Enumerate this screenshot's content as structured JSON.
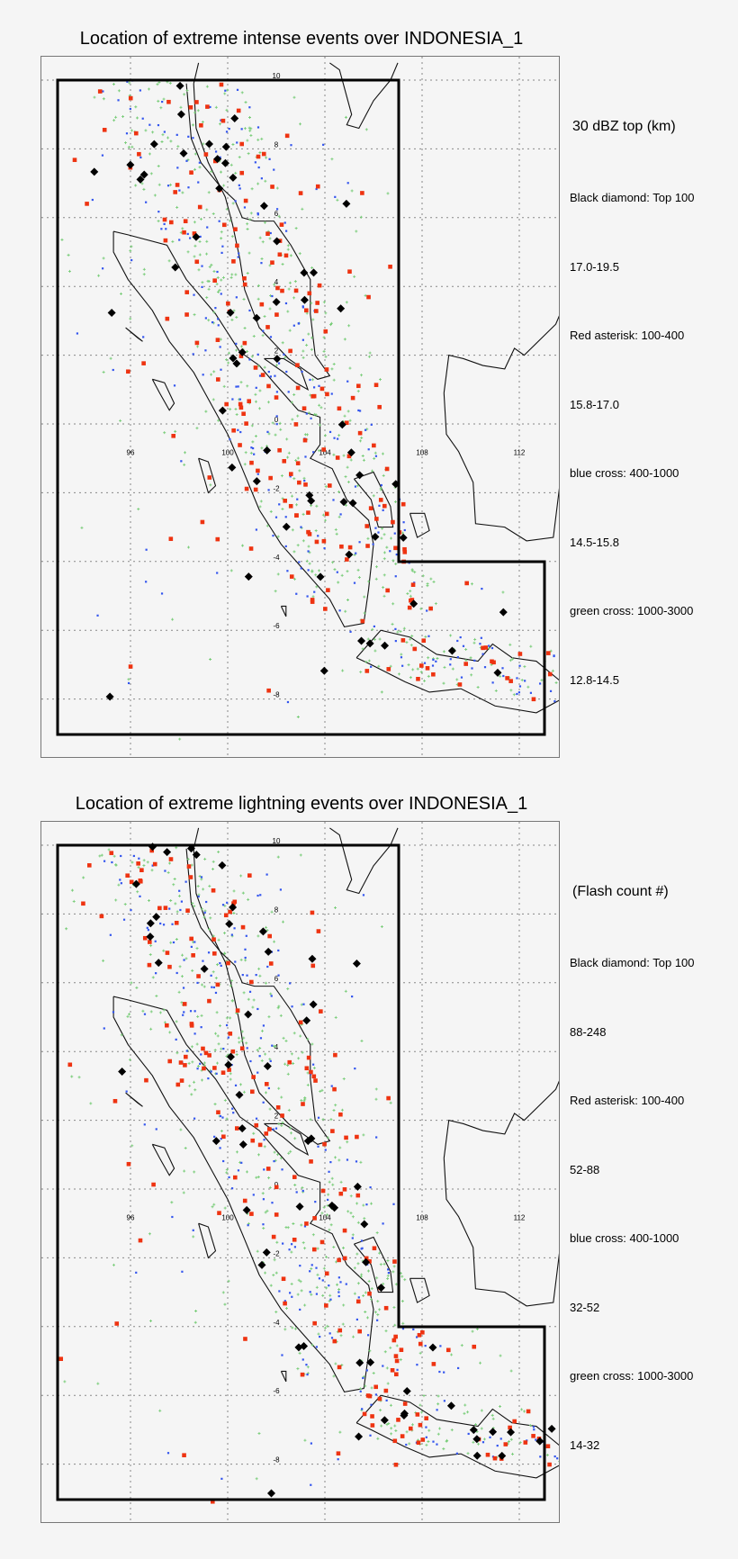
{
  "chart_data": [
    {
      "type": "scatter",
      "title": "Location of extreme intense events over INDONESIA_1",
      "variable": "30 dBZ top (km)",
      "xlabel": "",
      "ylabel": "",
      "x_ticks": [
        "96",
        "100",
        "104",
        "108",
        "112"
      ],
      "y_ticks": [
        "10",
        "8",
        "6",
        "4",
        "2",
        "0",
        "-2",
        "-4",
        "-6",
        "-8"
      ],
      "xlim": [
        92.5,
        114
      ],
      "ylim": [
        -9.5,
        10
      ],
      "grid": true,
      "legend_position": "right",
      "legend": [
        {
          "marker": "black diamond",
          "label": "Black diamond: Top 100",
          "range": "17.0-19.5"
        },
        {
          "marker": "red asterisk",
          "label": "Red asterisk: 100-400",
          "range": "15.8-17.0"
        },
        {
          "marker": "blue cross",
          "label": "blue cross: 400-1000",
          "range": "14.5-15.8"
        },
        {
          "marker": "green cross",
          "label": "green cross: 1000-3000",
          "range": "12.8-14.5"
        }
      ]
    },
    {
      "type": "scatter",
      "title": "Location of extreme lightning  events over INDONESIA_1",
      "variable": "(Flash count #)",
      "xlabel": "",
      "ylabel": "",
      "x_ticks": [
        "96",
        "100",
        "104",
        "108",
        "112"
      ],
      "y_ticks": [
        "10",
        "8",
        "6",
        "4",
        "2",
        "0",
        "-2",
        "-4",
        "-6",
        "-8"
      ],
      "xlim": [
        92.5,
        114
      ],
      "ylim": [
        -9.5,
        10
      ],
      "grid": true,
      "legend_position": "right",
      "legend": [
        {
          "marker": "black diamond",
          "label": "Black diamond: Top 100",
          "range": "88-248"
        },
        {
          "marker": "red asterisk",
          "label": "Red asterisk: 100-400",
          "range": "52-88"
        },
        {
          "marker": "blue cross",
          "label": "blue cross: 400-1000",
          "range": "32-52"
        },
        {
          "marker": "green cross",
          "label": "green cross: 1000-3000",
          "range": "14-32"
        }
      ]
    }
  ],
  "panels": [
    {
      "title": "Location of extreme intense events over INDONESIA_1",
      "legend_header": "30 dBZ top (km)",
      "legend": [
        "Black diamond: Top 100",
        "17.0-19.5",
        "Red asterisk: 100-400",
        "15.8-17.0",
        "blue cross: 400-1000",
        "14.5-15.8",
        "green cross: 1000-3000",
        "12.8-14.5"
      ]
    },
    {
      "title": "Location of extreme lightning  events over INDONESIA_1",
      "legend_header": "(Flash count #)",
      "legend": [
        "Black diamond: Top 100",
        "88-248",
        "Red asterisk: 100-400",
        "52-88",
        "blue cross: 400-1000",
        "32-52",
        "green cross: 1000-3000",
        "14-32"
      ]
    }
  ],
  "colors": {
    "diamond": "#000000",
    "red": "#ee3311",
    "blue": "#3355ee",
    "green": "#77cc77",
    "grid": "#888888"
  }
}
